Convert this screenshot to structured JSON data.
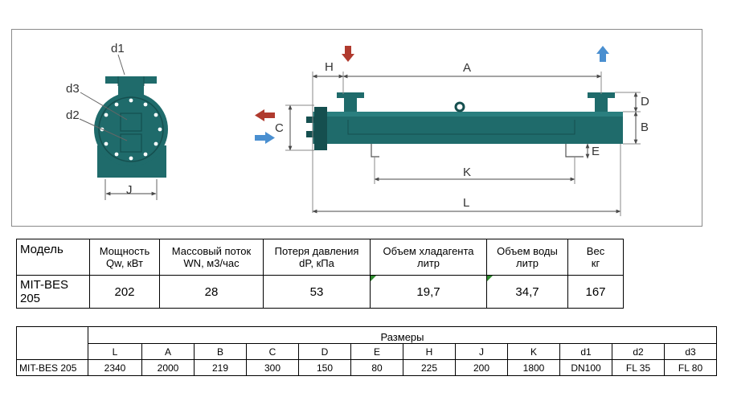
{
  "drawing": {
    "labels": {
      "d1": "d1",
      "d2": "d2",
      "d3": "d3",
      "J": "J",
      "H": "H",
      "A": "A",
      "C": "C",
      "D": "D",
      "B": "B",
      "E": "E",
      "K": "K",
      "L": "L"
    },
    "colors": {
      "body": "#1f6b6b",
      "body_dark": "#154f4f",
      "dim_line": "#4a4a4a",
      "arrow_in": "#b03a2e",
      "arrow_out": "#4a8fd0"
    }
  },
  "table1": {
    "headers": [
      {
        "line1": "Модель",
        "line2": ""
      },
      {
        "line1": "Мощность",
        "line2": "Qw, кВт"
      },
      {
        "line1": "Массовый поток",
        "line2": "WN, м3/час"
      },
      {
        "line1": "Потеря давления",
        "line2": "dP, кПа"
      },
      {
        "line1": "Объем хладагента",
        "line2": "литр"
      },
      {
        "line1": "Объем воды",
        "line2": "литр"
      },
      {
        "line1": "Вес",
        "line2": "кг"
      }
    ],
    "row": [
      "MIT-BES 205",
      "202",
      "28",
      "53",
      "19,7",
      "34,7",
      "167"
    ]
  },
  "table2": {
    "title": "Размеры",
    "columns": [
      "L",
      "A",
      "B",
      "C",
      "D",
      "E",
      "H",
      "J",
      "K",
      "d1",
      "d2",
      "d3"
    ],
    "model": "MIT-BES 205",
    "values": [
      "2340",
      "2000",
      "219",
      "300",
      "150",
      "80",
      "225",
      "200",
      "1800",
      "DN100",
      "FL 35",
      "FL 80"
    ]
  }
}
